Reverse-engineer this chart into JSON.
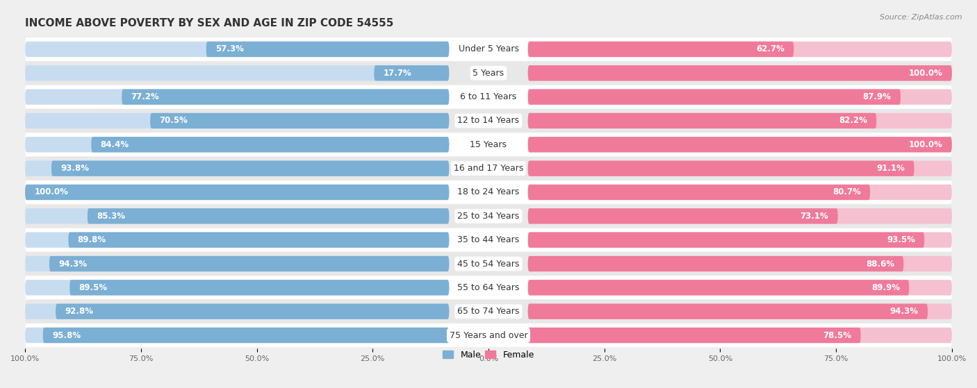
{
  "title": "INCOME ABOVE POVERTY BY SEX AND AGE IN ZIP CODE 54555",
  "source": "Source: ZipAtlas.com",
  "categories": [
    "Under 5 Years",
    "5 Years",
    "6 to 11 Years",
    "12 to 14 Years",
    "15 Years",
    "16 and 17 Years",
    "18 to 24 Years",
    "25 to 34 Years",
    "35 to 44 Years",
    "45 to 54 Years",
    "55 to 64 Years",
    "65 to 74 Years",
    "75 Years and over"
  ],
  "male_values": [
    57.3,
    17.7,
    77.2,
    70.5,
    84.4,
    93.8,
    100.0,
    85.3,
    89.8,
    94.3,
    89.5,
    92.8,
    95.8
  ],
  "female_values": [
    62.7,
    100.0,
    87.9,
    82.2,
    100.0,
    91.1,
    80.7,
    73.1,
    93.5,
    88.6,
    89.9,
    94.3,
    78.5
  ],
  "male_color": "#7BAFD4",
  "female_color": "#F07A9A",
  "male_light_color": "#C8DCF0",
  "female_light_color": "#F5C0D0",
  "bg_color": "#EFEFEF",
  "row_bg_even": "#FFFFFF",
  "row_bg_odd": "#E8E8E8",
  "title_fontsize": 11,
  "label_fontsize": 9,
  "value_fontsize": 8.5,
  "axis_fontsize": 8,
  "bar_height": 0.65
}
